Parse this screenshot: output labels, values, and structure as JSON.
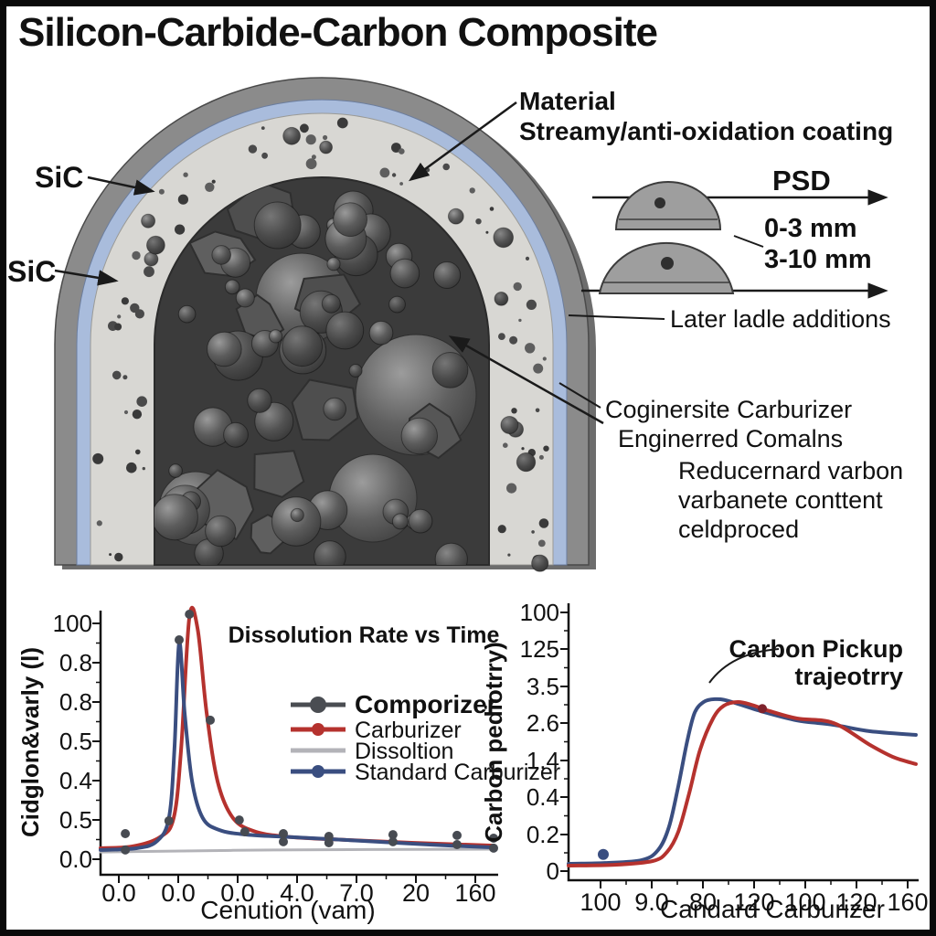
{
  "page": {
    "title": "Silicon-Carbide-Carbon Composite"
  },
  "diagram": {
    "labels": {
      "sic_top": "SiC",
      "sic_bottom": "SiC",
      "material_line1": "Material",
      "material_line2": "Streamy/anti-oxidation coating",
      "psd": "PSD",
      "size_small": "0-3 mm",
      "size_large": "3-10 mm",
      "later_additions": "Later ladle additions",
      "carburizer_line1": "Coginersite Carburizer",
      "carburizer_line2": "Enginerred Comalns",
      "reduce_line1": "Reducernard varbon",
      "reduce_line2": "varbanete conttent",
      "reduce_line3": "celdproced"
    }
  },
  "colors": {
    "red": "#b5322e",
    "navy": "#3a4e80",
    "charcoal": "#4a4d52",
    "gray_line": "#b3b3b8",
    "coating_blue": "#a9bcdc",
    "shell_gray": "#8b8b8b",
    "shell_shadow": "#6d6d6d",
    "layer_light": "#d8d7d3",
    "core_dark": "#3b3b3b",
    "mini_dome": "#9e9e9e"
  },
  "chart_data": [
    {
      "type": "line",
      "title": "Dissolution Rate vs Time",
      "xlabel": "Cenution (vam)",
      "ylabel": "Cidglon&varly (l)",
      "x_ticks": [
        "0.0",
        "0.0",
        "0.0",
        "4.0",
        "7.0",
        "20",
        "160"
      ],
      "y_ticks": [
        "100",
        "0.8",
        "0.8",
        "0.5",
        "0.4",
        "0.5",
        "0.0"
      ],
      "legend": [
        {
          "label": "Comporizer",
          "color": "#4a4d52",
          "marker": true,
          "bold": true
        },
        {
          "label": "Carburizer",
          "color": "#b5322e",
          "marker": true,
          "bold": false
        },
        {
          "label": "Dissoltion",
          "color": "#b3b3b8",
          "marker": false,
          "bold": false
        },
        {
          "label": "Standard Carburizer",
          "color": "#3a4e80",
          "marker": true,
          "bold": false
        }
      ],
      "points_normalized": true,
      "series": [
        {
          "name": "Dissoltion",
          "color": "#b3b3b8",
          "width": 3,
          "points": [
            [
              0,
              0.071
            ],
            [
              0.442,
              0.079
            ],
            [
              1,
              0.082
            ]
          ]
        },
        {
          "name": "Carburizer",
          "color": "#b5322e",
          "width": 4,
          "points": [
            [
              0,
              0.086
            ],
            [
              0.081,
              0.093
            ],
            [
              0.151,
              0.129
            ],
            [
              0.186,
              0.204
            ],
            [
              0.205,
              0.471
            ],
            [
              0.226,
              0.989
            ],
            [
              0.247,
              0.943
            ],
            [
              0.27,
              0.614
            ],
            [
              0.298,
              0.346
            ],
            [
              0.337,
              0.204
            ],
            [
              0.395,
              0.15
            ],
            [
              0.488,
              0.129
            ],
            [
              0.628,
              0.118
            ],
            [
              0.791,
              0.107
            ],
            [
              1,
              0.096
            ]
          ]
        },
        {
          "name": "Standard Carburizer",
          "color": "#3a4e80",
          "width": 4,
          "points": [
            [
              0,
              0.079
            ],
            [
              0.093,
              0.086
            ],
            [
              0.144,
              0.114
            ],
            [
              0.174,
              0.204
            ],
            [
              0.188,
              0.471
            ],
            [
              0.2,
              0.889
            ],
            [
              0.214,
              0.614
            ],
            [
              0.233,
              0.346
            ],
            [
              0.26,
              0.204
            ],
            [
              0.302,
              0.157
            ],
            [
              0.372,
              0.139
            ],
            [
              0.488,
              0.129
            ],
            [
              0.674,
              0.114
            ],
            [
              0.837,
              0.1
            ],
            [
              1,
              0.089
            ]
          ]
        }
      ],
      "scatter": {
        "color": "#474b52",
        "r": 5,
        "points": [
          [
            0.063,
            0.143
          ],
          [
            0.063,
            0.079
          ],
          [
            0.174,
            0.193
          ],
          [
            0.2,
            0.9
          ],
          [
            0.226,
            1.0
          ],
          [
            0.279,
            0.586
          ],
          [
            0.353,
            0.196
          ],
          [
            0.367,
            0.15
          ],
          [
            0.465,
            0.143
          ],
          [
            0.465,
            0.111
          ],
          [
            0.581,
            0.132
          ],
          [
            0.581,
            0.107
          ],
          [
            0.744,
            0.139
          ],
          [
            0.744,
            0.111
          ],
          [
            0.907,
            0.136
          ],
          [
            0.907,
            0.1
          ],
          [
            1,
            0.125
          ],
          [
            1,
            0.086
          ]
        ]
      }
    },
    {
      "type": "line",
      "annotation": [
        "Carbon Pickup",
        "trajeotrry"
      ],
      "xlabel": "Candard Carburizer",
      "ylabel": "Carbon pediotrry)",
      "x_ticks": [
        "100",
        "9.0",
        "80",
        "120",
        "100",
        "120",
        "160"
      ],
      "y_ticks": [
        "100",
        "125",
        "3.5",
        "2.6",
        "1.4",
        "0.4",
        "0.2",
        "0"
      ],
      "points_normalized": true,
      "series": [
        {
          "name": "Standard Carburizer",
          "color": "#3a4e80",
          "width": 4,
          "points": [
            [
              0,
              0.045
            ],
            [
              0.105,
              0.048
            ],
            [
              0.211,
              0.059
            ],
            [
              0.258,
              0.097
            ],
            [
              0.289,
              0.183
            ],
            [
              0.316,
              0.338
            ],
            [
              0.342,
              0.51
            ],
            [
              0.363,
              0.614
            ],
            [
              0.389,
              0.655
            ],
            [
              0.421,
              0.666
            ],
            [
              0.461,
              0.659
            ],
            [
              0.553,
              0.621
            ],
            [
              0.658,
              0.586
            ],
            [
              0.763,
              0.569
            ],
            [
              0.868,
              0.545
            ],
            [
              1,
              0.531
            ]
          ]
        },
        {
          "name": "Carburizer",
          "color": "#b5322e",
          "width": 4,
          "points": [
            [
              0,
              0.038
            ],
            [
              0.132,
              0.041
            ],
            [
              0.242,
              0.055
            ],
            [
              0.284,
              0.09
            ],
            [
              0.316,
              0.166
            ],
            [
              0.347,
              0.31
            ],
            [
              0.379,
              0.476
            ],
            [
              0.416,
              0.593
            ],
            [
              0.447,
              0.641
            ],
            [
              0.487,
              0.655
            ],
            [
              0.526,
              0.645
            ],
            [
              0.579,
              0.621
            ],
            [
              0.658,
              0.593
            ],
            [
              0.763,
              0.576
            ],
            [
              0.868,
              0.493
            ],
            [
              0.934,
              0.448
            ],
            [
              1,
              0.421
            ]
          ]
        }
      ],
      "scatter": {
        "points": [
          {
            "x": 0.1,
            "y": 0.08,
            "color": "#3a4e80",
            "r": 6
          },
          {
            "x": 0.558,
            "y": 0.63,
            "color": "#7e222c",
            "r": 5
          }
        ]
      }
    }
  ]
}
